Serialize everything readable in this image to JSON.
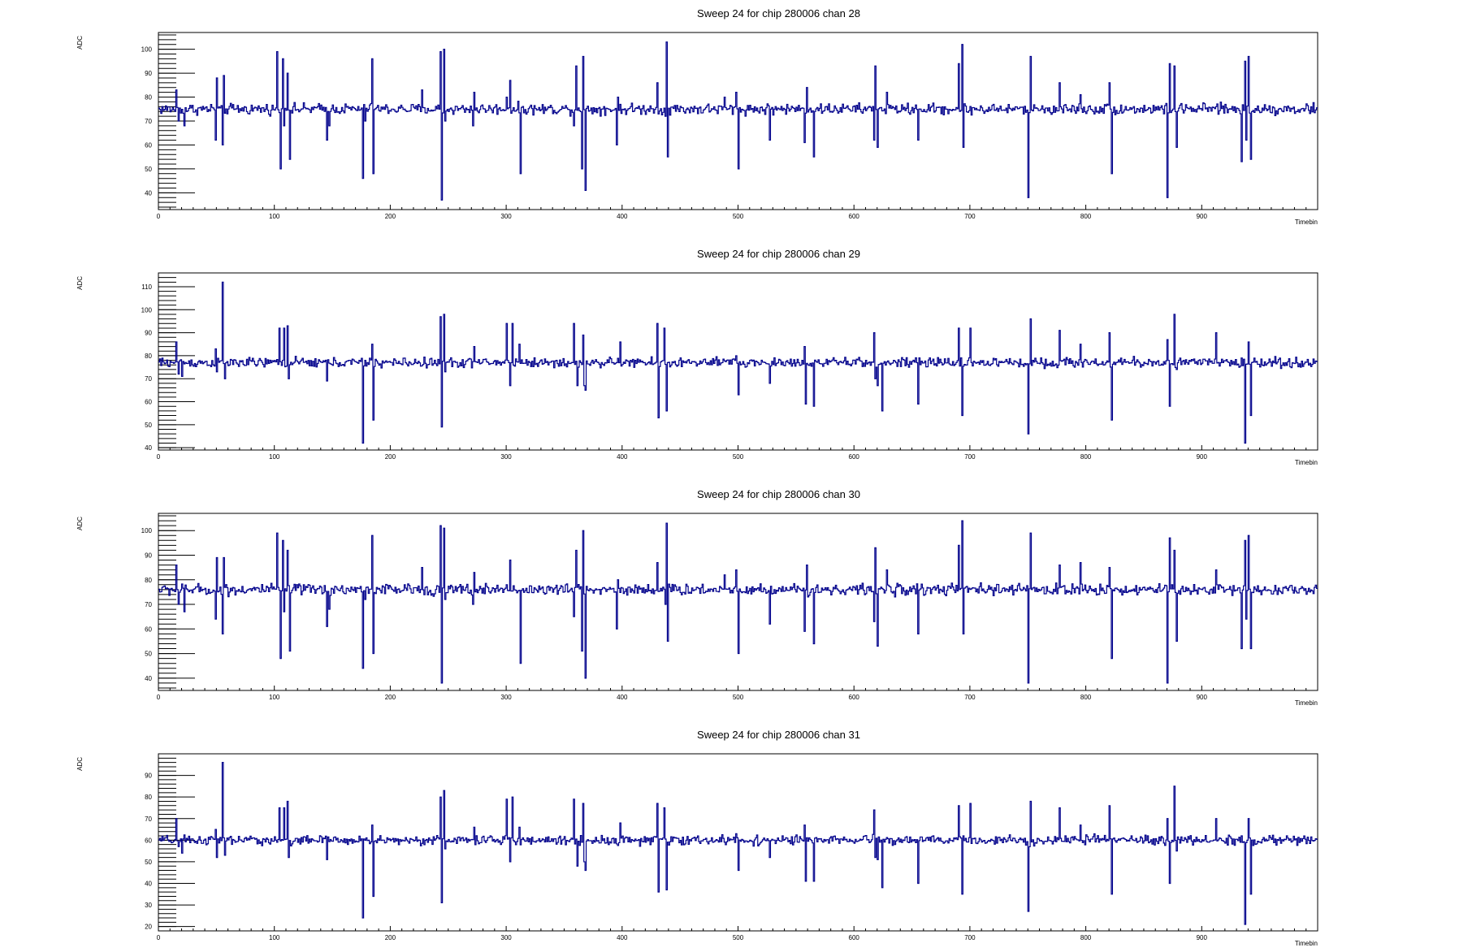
{
  "page": {
    "background": "#ffffff"
  },
  "style": {
    "line_color": "#00008b",
    "axis_color": "#000000"
  },
  "chart_data": [
    {
      "type": "line",
      "title": "Sweep 24 for chip 280006 chan 28",
      "xlabel": "Timebin",
      "ylabel": "ADC",
      "xlim": [
        0,
        1000
      ],
      "ylim": [
        33,
        107
      ],
      "xticks": [
        0,
        100,
        200,
        300,
        400,
        500,
        600,
        700,
        800,
        900
      ],
      "yticks": [
        40,
        50,
        60,
        70,
        80,
        90,
        100
      ],
      "baseline": 75,
      "noise": 1.6,
      "spikes": [
        [
          15,
          83
        ],
        [
          17,
          70
        ],
        [
          22,
          68
        ],
        [
          49,
          62
        ],
        [
          50,
          88
        ],
        [
          55,
          60
        ],
        [
          56,
          89
        ],
        [
          102,
          99
        ],
        [
          105,
          50
        ],
        [
          107,
          96
        ],
        [
          108,
          68
        ],
        [
          111,
          90
        ],
        [
          113,
          54
        ],
        [
          145,
          62
        ],
        [
          147,
          68
        ],
        [
          176,
          46
        ],
        [
          178,
          70
        ],
        [
          184,
          96
        ],
        [
          185,
          48
        ],
        [
          227,
          83
        ],
        [
          243,
          99
        ],
        [
          244,
          37
        ],
        [
          246,
          100
        ],
        [
          247,
          70
        ],
        [
          271,
          68
        ],
        [
          272,
          82
        ],
        [
          300,
          80
        ],
        [
          303,
          87
        ],
        [
          312,
          48
        ],
        [
          358,
          68
        ],
        [
          360,
          93
        ],
        [
          365,
          50
        ],
        [
          366,
          97
        ],
        [
          368,
          41
        ],
        [
          395,
          60
        ],
        [
          396,
          80
        ],
        [
          430,
          86
        ],
        [
          437,
          72
        ],
        [
          438,
          103
        ],
        [
          439,
          55
        ],
        [
          488,
          80
        ],
        [
          498,
          82
        ],
        [
          500,
          50
        ],
        [
          527,
          62
        ],
        [
          557,
          61
        ],
        [
          559,
          84
        ],
        [
          565,
          55
        ],
        [
          617,
          62
        ],
        [
          618,
          93
        ],
        [
          620,
          59
        ],
        [
          628,
          82
        ],
        [
          655,
          62
        ],
        [
          690,
          94
        ],
        [
          693,
          102
        ],
        [
          694,
          59
        ],
        [
          750,
          38
        ],
        [
          752,
          97
        ],
        [
          777,
          86
        ],
        [
          795,
          81
        ],
        [
          820,
          86
        ],
        [
          822,
          48
        ],
        [
          870,
          38
        ],
        [
          872,
          94
        ],
        [
          876,
          93
        ],
        [
          878,
          59
        ],
        [
          912,
          76
        ],
        [
          934,
          53
        ],
        [
          937,
          95
        ],
        [
          938,
          62
        ],
        [
          940,
          97
        ],
        [
          942,
          54
        ]
      ]
    },
    {
      "type": "line",
      "title": "Sweep 24 for chip 280006 chan 29",
      "xlabel": "Timebin",
      "ylabel": "ADC",
      "xlim": [
        0,
        1000
      ],
      "ylim": [
        39,
        116
      ],
      "xticks": [
        0,
        100,
        200,
        300,
        400,
        500,
        600,
        700,
        800,
        900
      ],
      "yticks": [
        40,
        50,
        60,
        70,
        80,
        90,
        100,
        110
      ],
      "baseline": 77,
      "noise": 1.5,
      "spikes": [
        [
          15,
          86
        ],
        [
          17,
          72
        ],
        [
          20,
          71
        ],
        [
          49,
          83
        ],
        [
          50,
          73
        ],
        [
          55,
          112
        ],
        [
          57,
          70
        ],
        [
          104,
          92
        ],
        [
          107,
          78
        ],
        [
          108,
          92
        ],
        [
          111,
          93
        ],
        [
          112,
          70
        ],
        [
          145,
          69
        ],
        [
          176,
          42
        ],
        [
          178,
          78
        ],
        [
          184,
          85
        ],
        [
          185,
          52
        ],
        [
          243,
          97
        ],
        [
          244,
          49
        ],
        [
          246,
          98
        ],
        [
          247,
          73
        ],
        [
          272,
          84
        ],
        [
          300,
          94
        ],
        [
          303,
          67
        ],
        [
          305,
          94
        ],
        [
          311,
          85
        ],
        [
          358,
          94
        ],
        [
          361,
          67
        ],
        [
          366,
          89
        ],
        [
          367,
          67
        ],
        [
          368,
          65
        ],
        [
          398,
          86
        ],
        [
          430,
          94
        ],
        [
          431,
          53
        ],
        [
          436,
          92
        ],
        [
          438,
          56
        ],
        [
          498,
          80
        ],
        [
          500,
          63
        ],
        [
          527,
          68
        ],
        [
          557,
          84
        ],
        [
          558,
          59
        ],
        [
          565,
          58
        ],
        [
          617,
          90
        ],
        [
          618,
          70
        ],
        [
          620,
          67
        ],
        [
          624,
          56
        ],
        [
          655,
          59
        ],
        [
          690,
          92
        ],
        [
          693,
          54
        ],
        [
          700,
          92
        ],
        [
          750,
          46
        ],
        [
          752,
          96
        ],
        [
          777,
          91
        ],
        [
          795,
          85
        ],
        [
          820,
          90
        ],
        [
          822,
          52
        ],
        [
          870,
          87
        ],
        [
          872,
          58
        ],
        [
          876,
          98
        ],
        [
          878,
          74
        ],
        [
          912,
          90
        ],
        [
          934,
          79
        ],
        [
          937,
          42
        ],
        [
          940,
          86
        ],
        [
          942,
          54
        ]
      ]
    },
    {
      "type": "line",
      "title": "Sweep 24 for chip 280006 chan 30",
      "xlabel": "Timebin",
      "ylabel": "ADC",
      "xlim": [
        0,
        1000
      ],
      "ylim": [
        35,
        107
      ],
      "xticks": [
        0,
        100,
        200,
        300,
        400,
        500,
        600,
        700,
        800,
        900
      ],
      "yticks": [
        40,
        50,
        60,
        70,
        80,
        90,
        100
      ],
      "baseline": 76,
      "noise": 1.6,
      "spikes": [
        [
          15,
          86
        ],
        [
          17,
          70
        ],
        [
          22,
          67
        ],
        [
          49,
          64
        ],
        [
          50,
          89
        ],
        [
          55,
          58
        ],
        [
          56,
          89
        ],
        [
          102,
          99
        ],
        [
          105,
          48
        ],
        [
          107,
          96
        ],
        [
          108,
          67
        ],
        [
          111,
          92
        ],
        [
          113,
          51
        ],
        [
          145,
          61
        ],
        [
          147,
          68
        ],
        [
          176,
          44
        ],
        [
          178,
          72
        ],
        [
          184,
          98
        ],
        [
          185,
          50
        ],
        [
          227,
          85
        ],
        [
          243,
          102
        ],
        [
          244,
          38
        ],
        [
          246,
          101
        ],
        [
          247,
          72
        ],
        [
          271,
          70
        ],
        [
          272,
          83
        ],
        [
          300,
          78
        ],
        [
          303,
          88
        ],
        [
          312,
          46
        ],
        [
          358,
          65
        ],
        [
          360,
          92
        ],
        [
          365,
          51
        ],
        [
          366,
          100
        ],
        [
          368,
          40
        ],
        [
          395,
          60
        ],
        [
          396,
          80
        ],
        [
          430,
          87
        ],
        [
          437,
          70
        ],
        [
          438,
          103
        ],
        [
          439,
          55
        ],
        [
          488,
          82
        ],
        [
          498,
          84
        ],
        [
          500,
          50
        ],
        [
          527,
          62
        ],
        [
          557,
          59
        ],
        [
          559,
          86
        ],
        [
          565,
          54
        ],
        [
          617,
          63
        ],
        [
          618,
          93
        ],
        [
          620,
          53
        ],
        [
          628,
          84
        ],
        [
          655,
          58
        ],
        [
          690,
          94
        ],
        [
          693,
          104
        ],
        [
          694,
          58
        ],
        [
          750,
          38
        ],
        [
          752,
          99
        ],
        [
          777,
          86
        ],
        [
          795,
          87
        ],
        [
          820,
          85
        ],
        [
          822,
          48
        ],
        [
          870,
          38
        ],
        [
          872,
          97
        ],
        [
          876,
          92
        ],
        [
          878,
          55
        ],
        [
          912,
          84
        ],
        [
          934,
          52
        ],
        [
          937,
          96
        ],
        [
          938,
          64
        ],
        [
          940,
          98
        ],
        [
          942,
          52
        ]
      ]
    },
    {
      "type": "line",
      "title": "Sweep 24 for chip 280006 chan 31",
      "xlabel": "Timebin",
      "ylabel": "ADC",
      "xlim": [
        0,
        1000
      ],
      "ylim": [
        18,
        100
      ],
      "xticks": [
        0,
        100,
        200,
        300,
        400,
        500,
        600,
        700,
        800,
        900
      ],
      "yticks": [
        20,
        30,
        40,
        50,
        60,
        70,
        80,
        90
      ],
      "baseline": 60,
      "noise": 1.5,
      "spikes": [
        [
          15,
          70
        ],
        [
          17,
          57
        ],
        [
          20,
          54
        ],
        [
          49,
          65
        ],
        [
          50,
          52
        ],
        [
          55,
          96
        ],
        [
          57,
          53
        ],
        [
          104,
          75
        ],
        [
          107,
          60
        ],
        [
          108,
          75
        ],
        [
          111,
          78
        ],
        [
          112,
          52
        ],
        [
          145,
          51
        ],
        [
          176,
          24
        ],
        [
          178,
          60
        ],
        [
          184,
          67
        ],
        [
          185,
          34
        ],
        [
          243,
          80
        ],
        [
          244,
          31
        ],
        [
          246,
          83
        ],
        [
          247,
          56
        ],
        [
          272,
          66
        ],
        [
          300,
          79
        ],
        [
          303,
          50
        ],
        [
          305,
          80
        ],
        [
          311,
          66
        ],
        [
          358,
          79
        ],
        [
          361,
          48
        ],
        [
          366,
          77
        ],
        [
          367,
          50
        ],
        [
          368,
          46
        ],
        [
          398,
          68
        ],
        [
          430,
          77
        ],
        [
          431,
          36
        ],
        [
          436,
          75
        ],
        [
          438,
          37
        ],
        [
          498,
          63
        ],
        [
          500,
          46
        ],
        [
          527,
          52
        ],
        [
          557,
          67
        ],
        [
          558,
          41
        ],
        [
          565,
          41
        ],
        [
          617,
          74
        ],
        [
          618,
          52
        ],
        [
          620,
          51
        ],
        [
          624,
          38
        ],
        [
          655,
          40
        ],
        [
          690,
          76
        ],
        [
          693,
          35
        ],
        [
          700,
          77
        ],
        [
          750,
          27
        ],
        [
          752,
          78
        ],
        [
          777,
          75
        ],
        [
          795,
          67
        ],
        [
          820,
          76
        ],
        [
          822,
          35
        ],
        [
          870,
          70
        ],
        [
          872,
          40
        ],
        [
          876,
          85
        ],
        [
          878,
          55
        ],
        [
          912,
          70
        ],
        [
          934,
          62
        ],
        [
          937,
          21
        ],
        [
          940,
          70
        ],
        [
          942,
          35
        ]
      ]
    }
  ]
}
